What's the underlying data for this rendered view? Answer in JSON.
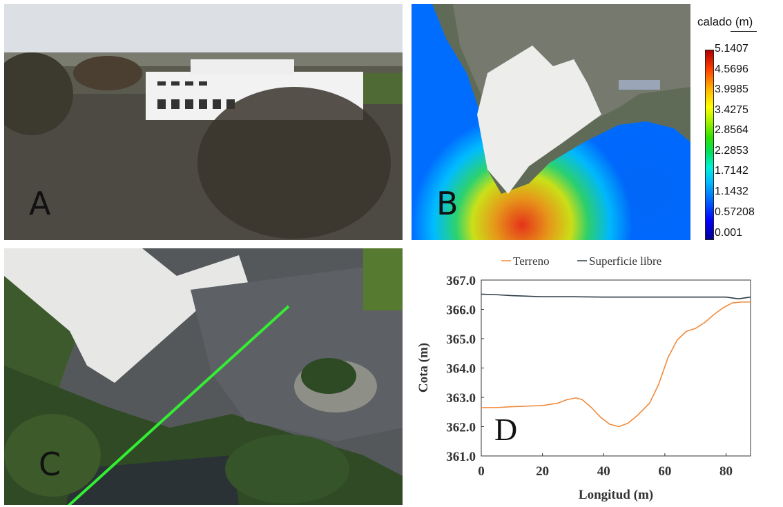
{
  "panels": {
    "a": {
      "label": "A"
    },
    "b": {
      "label": "B"
    },
    "c": {
      "label": "C"
    },
    "d": {
      "label": "D"
    }
  },
  "colorbar": {
    "title": "calado (m)",
    "ticks": [
      "5.1407",
      "4.5696",
      "3.9985",
      "3.4275",
      "2.8564",
      "2.2853",
      "1.7142",
      "1.1432",
      "0.57208",
      "0.001"
    ],
    "colors": {
      "low": "#000096",
      "high": "#b00000"
    }
  },
  "colors": {
    "terreno": "#f08a3c",
    "superficie": "#2f3e46",
    "profile_line": "#33ee33"
  },
  "chart_data": {
    "type": "line",
    "title": "",
    "xlabel": "Longitud (m)",
    "ylabel": "Cota (m)",
    "xlim": [
      0,
      88
    ],
    "ylim": [
      361.0,
      367.0
    ],
    "xticks": [
      0,
      20,
      40,
      60,
      80
    ],
    "yticks": [
      361.0,
      362.0,
      363.0,
      364.0,
      365.0,
      366.0,
      367.0
    ],
    "xtick_labels": [
      "0",
      "20",
      "40",
      "60",
      "80"
    ],
    "ytick_labels": [
      "361.0",
      "362.0",
      "363.0",
      "364.0",
      "365.0",
      "366.0",
      "367.0"
    ],
    "legend_position": "top",
    "grid": false,
    "series": [
      {
        "name": "Terreno",
        "x": [
          0,
          5,
          10,
          15,
          20,
          25,
          28,
          31,
          33,
          36,
          39,
          42,
          45,
          48,
          51,
          55,
          58,
          61,
          64,
          67,
          70,
          73,
          76,
          79,
          82,
          85,
          88
        ],
        "y": [
          362.65,
          362.65,
          362.68,
          362.7,
          362.72,
          362.8,
          362.92,
          362.98,
          362.92,
          362.65,
          362.32,
          362.08,
          362.0,
          362.12,
          362.38,
          362.8,
          363.45,
          364.35,
          364.95,
          365.25,
          365.35,
          365.55,
          365.82,
          366.05,
          366.22,
          366.25,
          366.25
        ]
      },
      {
        "name": "Superficie libre",
        "x": [
          0,
          5,
          10,
          20,
          30,
          40,
          50,
          60,
          70,
          80,
          84,
          88
        ],
        "y": [
          366.52,
          366.5,
          366.47,
          366.43,
          366.43,
          366.42,
          366.42,
          366.42,
          366.42,
          366.42,
          366.36,
          366.42
        ]
      }
    ]
  }
}
